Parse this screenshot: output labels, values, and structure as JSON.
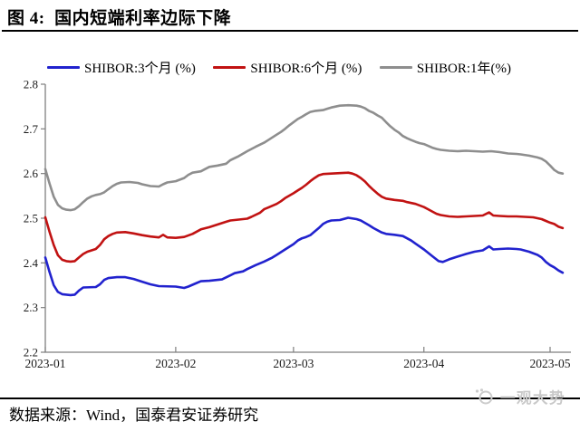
{
  "figure": {
    "title": "图 4:  国内短端利率边际下降",
    "source": "数据来源：Wind，国泰君安证券研究",
    "watermark": "一观大势"
  },
  "chart_data": {
    "type": "line",
    "title": "国内短端利率边际下降",
    "legend_position": "top",
    "grid": false,
    "y_axis": {
      "min": 2.2,
      "max": 2.8,
      "step": 0.1,
      "ticks": [
        {
          "label": "2.2",
          "value": 2.2
        },
        {
          "label": "2.3",
          "value": 2.3
        },
        {
          "label": "2.4",
          "value": 2.4
        },
        {
          "label": "2.5",
          "value": 2.5
        },
        {
          "label": "2.6",
          "value": 2.6
        },
        {
          "label": "2.7",
          "value": 2.7
        },
        {
          "label": "2.8",
          "value": 2.8
        }
      ]
    },
    "x_axis": {
      "unit": "days from 2023-01",
      "ticks": [
        {
          "label": "2023-01",
          "day": 0
        },
        {
          "label": "2023-02",
          "day": 31
        },
        {
          "label": "2023-03",
          "day": 59
        },
        {
          "label": "2023-04",
          "day": 90
        },
        {
          "label": "2023-05",
          "day": 120
        }
      ]
    },
    "series": [
      {
        "name": "SHIBOR:3个月 (%)",
        "color": "#2122CE",
        "points": [
          [
            0,
            2.412
          ],
          [
            1,
            2.38
          ],
          [
            2,
            2.35
          ],
          [
            3,
            2.335
          ],
          [
            4,
            2.33
          ],
          [
            6,
            2.328
          ],
          [
            7,
            2.329
          ],
          [
            8,
            2.338
          ],
          [
            9,
            2.345
          ],
          [
            12,
            2.346
          ],
          [
            13,
            2.352
          ],
          [
            14,
            2.362
          ],
          [
            15,
            2.366
          ],
          [
            17,
            2.368
          ],
          [
            19,
            2.368
          ],
          [
            21,
            2.364
          ],
          [
            23,
            2.358
          ],
          [
            25,
            2.352
          ],
          [
            27,
            2.348
          ],
          [
            31,
            2.347
          ],
          [
            33,
            2.344
          ],
          [
            34,
            2.347
          ],
          [
            36,
            2.355
          ],
          [
            37,
            2.359
          ],
          [
            39,
            2.36
          ],
          [
            42,
            2.363
          ],
          [
            44,
            2.372
          ],
          [
            45,
            2.377
          ],
          [
            47,
            2.381
          ],
          [
            48,
            2.386
          ],
          [
            50,
            2.395
          ],
          [
            52,
            2.403
          ],
          [
            54,
            2.412
          ],
          [
            55,
            2.418
          ],
          [
            57,
            2.43
          ],
          [
            59,
            2.442
          ],
          [
            60,
            2.45
          ],
          [
            61,
            2.455
          ],
          [
            62,
            2.458
          ],
          [
            63,
            2.462
          ],
          [
            64,
            2.47
          ],
          [
            65,
            2.478
          ],
          [
            66,
            2.487
          ],
          [
            67,
            2.492
          ],
          [
            68,
            2.495
          ],
          [
            70,
            2.496
          ],
          [
            72,
            2.501
          ],
          [
            74,
            2.498
          ],
          [
            75,
            2.495
          ],
          [
            77,
            2.484
          ],
          [
            78,
            2.478
          ],
          [
            80,
            2.468
          ],
          [
            81,
            2.465
          ],
          [
            83,
            2.463
          ],
          [
            85,
            2.46
          ],
          [
            86,
            2.455
          ],
          [
            87,
            2.45
          ],
          [
            88,
            2.443
          ],
          [
            90,
            2.43
          ],
          [
            92,
            2.415
          ],
          [
            93.5,
            2.404
          ],
          [
            94.5,
            2.402
          ],
          [
            96,
            2.408
          ],
          [
            98,
            2.414
          ],
          [
            100,
            2.42
          ],
          [
            102,
            2.425
          ],
          [
            104,
            2.428
          ],
          [
            105.5,
            2.437
          ],
          [
            106.5,
            2.43
          ],
          [
            108,
            2.431
          ],
          [
            110,
            2.432
          ],
          [
            112,
            2.431
          ],
          [
            113,
            2.43
          ],
          [
            115,
            2.425
          ],
          [
            117,
            2.418
          ],
          [
            118,
            2.412
          ],
          [
            119,
            2.402
          ],
          [
            120,
            2.395
          ],
          [
            121,
            2.39
          ],
          [
            122,
            2.383
          ],
          [
            123,
            2.378
          ]
        ]
      },
      {
        "name": "SHIBOR:6个月 (%)",
        "color": "#C11212",
        "points": [
          [
            0,
            2.502
          ],
          [
            1,
            2.47
          ],
          [
            2,
            2.44
          ],
          [
            3,
            2.417
          ],
          [
            4,
            2.407
          ],
          [
            5,
            2.404
          ],
          [
            6,
            2.403
          ],
          [
            7,
            2.404
          ],
          [
            8,
            2.412
          ],
          [
            9,
            2.42
          ],
          [
            10,
            2.425
          ],
          [
            11,
            2.428
          ],
          [
            12,
            2.431
          ],
          [
            13,
            2.44
          ],
          [
            14,
            2.453
          ],
          [
            15,
            2.46
          ],
          [
            16,
            2.465
          ],
          [
            17,
            2.468
          ],
          [
            19,
            2.469
          ],
          [
            21,
            2.466
          ],
          [
            23,
            2.462
          ],
          [
            25,
            2.459
          ],
          [
            27,
            2.457
          ],
          [
            28,
            2.463
          ],
          [
            29,
            2.457
          ],
          [
            31,
            2.456
          ],
          [
            33,
            2.458
          ],
          [
            35,
            2.465
          ],
          [
            36,
            2.47
          ],
          [
            37,
            2.475
          ],
          [
            39,
            2.48
          ],
          [
            41,
            2.486
          ],
          [
            43,
            2.492
          ],
          [
            44,
            2.495
          ],
          [
            46,
            2.497
          ],
          [
            48,
            2.499
          ],
          [
            49,
            2.503
          ],
          [
            51,
            2.512
          ],
          [
            52,
            2.52
          ],
          [
            53,
            2.524
          ],
          [
            55,
            2.532
          ],
          [
            56,
            2.538
          ],
          [
            57,
            2.545
          ],
          [
            59,
            2.556
          ],
          [
            60,
            2.562
          ],
          [
            61,
            2.568
          ],
          [
            62,
            2.575
          ],
          [
            63,
            2.583
          ],
          [
            64,
            2.59
          ],
          [
            65,
            2.596
          ],
          [
            66,
            2.599
          ],
          [
            68,
            2.6
          ],
          [
            70,
            2.601
          ],
          [
            72,
            2.602
          ],
          [
            73,
            2.6
          ],
          [
            74,
            2.596
          ],
          [
            75,
            2.59
          ],
          [
            76,
            2.582
          ],
          [
            77,
            2.572
          ],
          [
            78,
            2.563
          ],
          [
            79,
            2.555
          ],
          [
            80,
            2.548
          ],
          [
            81,
            2.544
          ],
          [
            83,
            2.541
          ],
          [
            85,
            2.539
          ],
          [
            86,
            2.536
          ],
          [
            88,
            2.532
          ],
          [
            90,
            2.525
          ],
          [
            91,
            2.52
          ],
          [
            92,
            2.515
          ],
          [
            93,
            2.51
          ],
          [
            94,
            2.507
          ],
          [
            96,
            2.504
          ],
          [
            98,
            2.503
          ],
          [
            100,
            2.504
          ],
          [
            102,
            2.505
          ],
          [
            104,
            2.506
          ],
          [
            105.5,
            2.513
          ],
          [
            106.5,
            2.506
          ],
          [
            108,
            2.505
          ],
          [
            110,
            2.504
          ],
          [
            112,
            2.504
          ],
          [
            114,
            2.503
          ],
          [
            116,
            2.502
          ],
          [
            118,
            2.498
          ],
          [
            119,
            2.494
          ],
          [
            120,
            2.49
          ],
          [
            121,
            2.487
          ],
          [
            122,
            2.481
          ],
          [
            123,
            2.478
          ]
        ]
      },
      {
        "name": "SHIBOR:1年(%)",
        "color": "#8E8E8E",
        "points": [
          [
            0,
            2.61
          ],
          [
            1,
            2.578
          ],
          [
            2,
            2.548
          ],
          [
            3,
            2.53
          ],
          [
            4,
            2.522
          ],
          [
            5,
            2.519
          ],
          [
            6,
            2.518
          ],
          [
            7,
            2.52
          ],
          [
            8,
            2.527
          ],
          [
            9,
            2.536
          ],
          [
            10,
            2.544
          ],
          [
            11,
            2.549
          ],
          [
            12,
            2.552
          ],
          [
            13,
            2.554
          ],
          [
            14,
            2.558
          ],
          [
            15,
            2.565
          ],
          [
            16,
            2.572
          ],
          [
            17,
            2.577
          ],
          [
            18,
            2.58
          ],
          [
            20,
            2.581
          ],
          [
            22,
            2.579
          ],
          [
            23,
            2.576
          ],
          [
            25,
            2.572
          ],
          [
            27,
            2.571
          ],
          [
            28,
            2.576
          ],
          [
            29,
            2.58
          ],
          [
            31,
            2.583
          ],
          [
            33,
            2.59
          ],
          [
            34,
            2.597
          ],
          [
            35,
            2.602
          ],
          [
            37,
            2.605
          ],
          [
            38,
            2.61
          ],
          [
            39,
            2.615
          ],
          [
            41,
            2.618
          ],
          [
            43,
            2.622
          ],
          [
            44,
            2.63
          ],
          [
            46,
            2.639
          ],
          [
            48,
            2.65
          ],
          [
            50,
            2.66
          ],
          [
            52,
            2.669
          ],
          [
            53,
            2.675
          ],
          [
            55,
            2.687
          ],
          [
            56,
            2.693
          ],
          [
            57,
            2.7
          ],
          [
            58,
            2.708
          ],
          [
            59,
            2.715
          ],
          [
            60,
            2.722
          ],
          [
            61,
            2.727
          ],
          [
            62,
            2.733
          ],
          [
            63,
            2.738
          ],
          [
            64,
            2.74
          ],
          [
            66,
            2.742
          ],
          [
            67,
            2.745
          ],
          [
            68,
            2.748
          ],
          [
            69,
            2.75
          ],
          [
            70,
            2.752
          ],
          [
            72,
            2.753
          ],
          [
            74,
            2.752
          ],
          [
            75,
            2.75
          ],
          [
            76,
            2.746
          ],
          [
            77,
            2.74
          ],
          [
            78,
            2.736
          ],
          [
            79,
            2.73
          ],
          [
            80,
            2.725
          ],
          [
            81,
            2.715
          ],
          [
            82,
            2.706
          ],
          [
            83,
            2.698
          ],
          [
            84,
            2.692
          ],
          [
            85,
            2.684
          ],
          [
            86,
            2.679
          ],
          [
            87,
            2.675
          ],
          [
            88,
            2.671
          ],
          [
            89,
            2.668
          ],
          [
            90,
            2.666
          ],
          [
            91,
            2.662
          ],
          [
            92,
            2.658
          ],
          [
            93,
            2.655
          ],
          [
            94,
            2.653
          ],
          [
            96,
            2.651
          ],
          [
            98,
            2.65
          ],
          [
            100,
            2.651
          ],
          [
            102,
            2.65
          ],
          [
            104,
            2.649
          ],
          [
            106,
            2.65
          ],
          [
            108,
            2.648
          ],
          [
            110,
            2.645
          ],
          [
            112,
            2.644
          ],
          [
            113,
            2.643
          ],
          [
            115,
            2.64
          ],
          [
            117,
            2.636
          ],
          [
            118,
            2.633
          ],
          [
            119,
            2.627
          ],
          [
            120,
            2.618
          ],
          [
            121,
            2.608
          ],
          [
            122,
            2.602
          ],
          [
            123,
            2.6
          ]
        ]
      }
    ]
  }
}
